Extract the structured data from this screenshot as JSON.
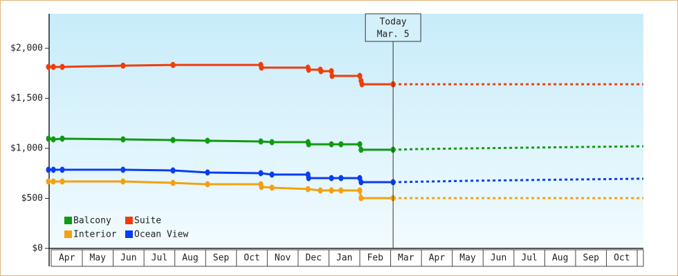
{
  "chart_data": {
    "type": "line",
    "ylim": [
      0,
      2345
    ],
    "yticks": [
      {
        "value": 0,
        "label": "$0"
      },
      {
        "value": 500,
        "label": "$500"
      },
      {
        "value": 1000,
        "label": "$1,000"
      },
      {
        "value": 1500,
        "label": "$1,500"
      },
      {
        "value": 2000,
        "label": "$2,000"
      }
    ],
    "xlim": [
      -0.1,
      19.2
    ],
    "xticks": [
      {
        "value": 0.5,
        "label": "Apr"
      },
      {
        "value": 1.5,
        "label": "May"
      },
      {
        "value": 2.5,
        "label": "Jun"
      },
      {
        "value": 3.5,
        "label": "Jul"
      },
      {
        "value": 4.5,
        "label": "Aug"
      },
      {
        "value": 5.5,
        "label": "Sep"
      },
      {
        "value": 6.5,
        "label": "Oct"
      },
      {
        "value": 7.5,
        "label": "Nov"
      },
      {
        "value": 8.5,
        "label": "Dec"
      },
      {
        "value": 9.5,
        "label": "Jan"
      },
      {
        "value": 10.5,
        "label": "Feb"
      },
      {
        "value": 11.5,
        "label": "Mar"
      },
      {
        "value": 12.5,
        "label": "Apr"
      },
      {
        "value": 13.5,
        "label": "May"
      },
      {
        "value": 14.5,
        "label": "Jun"
      },
      {
        "value": 15.5,
        "label": "Jul"
      },
      {
        "value": 16.5,
        "label": "Aug"
      },
      {
        "value": 17.5,
        "label": "Sep"
      },
      {
        "value": 18.5,
        "label": "Oct"
      }
    ],
    "annotation": {
      "x": 11.08,
      "lines": [
        "Today",
        "Mar. 5"
      ]
    },
    "series": [
      {
        "name": "Balcony",
        "color": "#109a10",
        "x": [
          -0.1,
          0.06,
          0.35,
          2.32,
          3.94,
          5.06,
          6.79,
          7.15,
          8.32,
          8.34,
          9.08,
          9.39,
          10.0,
          10.04,
          11.08
        ],
        "values": [
          1097,
          1090,
          1097,
          1090,
          1083,
          1076,
          1069,
          1062,
          1062,
          1041,
          1041,
          1041,
          1041,
          986,
          986
        ],
        "forecast_x": [
          11.08,
          11.91,
          13.59,
          15.38,
          19.2
        ],
        "forecast_values": [
          986,
          993,
          1000,
          1007,
          1021
        ]
      },
      {
        "name": "Suite",
        "color": "#f03c0a",
        "x": [
          -0.1,
          0.06,
          0.35,
          2.32,
          3.94,
          6.79,
          6.81,
          8.32,
          8.34,
          8.72,
          8.74,
          9.08,
          9.1,
          10.0,
          10.04,
          10.07,
          11.08
        ],
        "values": [
          1814,
          1814,
          1814,
          1827,
          1834,
          1834,
          1807,
          1807,
          1786,
          1786,
          1772,
          1772,
          1724,
          1724,
          1676,
          1641,
          1641
        ],
        "forecast_x": [
          11.08,
          19.2
        ],
        "forecast_values": [
          1641,
          1641
        ]
      },
      {
        "name": "Interior",
        "color": "#f5a010",
        "x": [
          -0.1,
          0.06,
          0.35,
          2.32,
          3.94,
          5.06,
          6.79,
          6.81,
          7.15,
          8.32,
          8.72,
          9.08,
          9.39,
          10.0,
          10.04,
          11.08
        ],
        "values": [
          669,
          669,
          669,
          669,
          655,
          641,
          641,
          614,
          607,
          593,
          579,
          579,
          579,
          579,
          503,
          503
        ],
        "forecast_x": [
          11.08,
          19.2
        ],
        "forecast_values": [
          503,
          503
        ]
      },
      {
        "name": "Ocean View",
        "color": "#0a3cf0",
        "x": [
          -0.1,
          0.06,
          0.35,
          2.32,
          3.94,
          5.06,
          6.79,
          7.15,
          8.32,
          8.34,
          9.08,
          9.39,
          10.0,
          10.04,
          11.08
        ],
        "values": [
          786,
          786,
          786,
          786,
          779,
          759,
          752,
          738,
          738,
          703,
          703,
          703,
          703,
          662,
          662
        ],
        "forecast_x": [
          11.08,
          13.59,
          15.38,
          19.2
        ],
        "forecast_values": [
          662,
          676,
          683,
          697
        ]
      }
    ]
  }
}
